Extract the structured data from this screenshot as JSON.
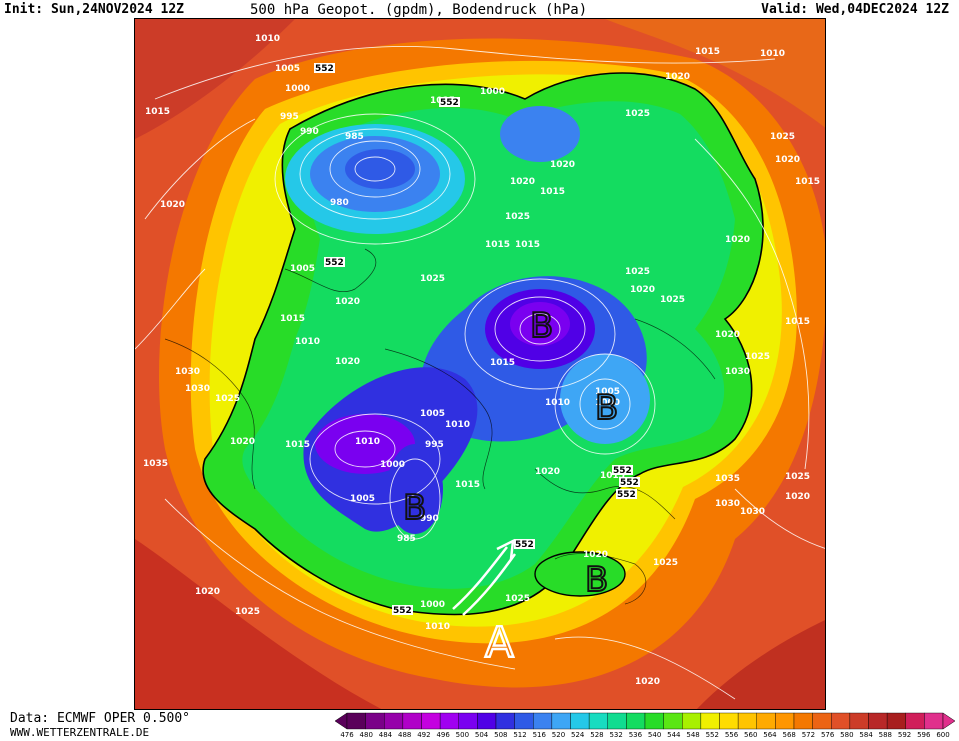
{
  "header": {
    "init": "Init: Sun,24NOV2024 12Z",
    "title": "500 hPa Geopot. (gpdm), Bodendruck (hPa)",
    "valid": "Valid: Wed,04DEC2024 12Z"
  },
  "footer": {
    "data_source": "Data: ECMWF OPER 0.500°",
    "url": "WWW.WETTERZENTRALE.DE"
  },
  "colorbar": {
    "ticks": [
      "476",
      "480",
      "484",
      "488",
      "492",
      "496",
      "500",
      "504",
      "508",
      "512",
      "516",
      "520",
      "524",
      "528",
      "532",
      "536",
      "540",
      "544",
      "548",
      "552",
      "556",
      "560",
      "564",
      "568",
      "572",
      "576",
      "580",
      "584",
      "588",
      "592",
      "596",
      "600"
    ],
    "colors": [
      "#5a005a",
      "#7a0088",
      "#9600aa",
      "#b000c8",
      "#c400e0",
      "#a000f0",
      "#7a00f0",
      "#5000e6",
      "#3030e0",
      "#2f5ae6",
      "#3b82f0",
      "#3ea6f5",
      "#25c8e8",
      "#18dcc0",
      "#10dc90",
      "#14dc60",
      "#28dc28",
      "#5ae614",
      "#a8f000",
      "#f0f000",
      "#ffdc00",
      "#ffc400",
      "#ffaa00",
      "#ff9600",
      "#f47800",
      "#ec6414",
      "#e05028",
      "#cc3c28",
      "#b82828",
      "#a81e1e",
      "#d01e5a",
      "#e0308c"
    ]
  },
  "annotations": {
    "low_symbol": "B",
    "high_symbol": "A",
    "gpdm_label": "552"
  },
  "isobar_labels": [
    {
      "text": "1010"
    },
    {
      "text": "1005"
    },
    {
      "text": "1000"
    },
    {
      "text": "995"
    },
    {
      "text": "990"
    },
    {
      "text": "985"
    },
    {
      "text": "980"
    },
    {
      "text": "1015"
    },
    {
      "text": "1020"
    },
    {
      "text": "1025"
    },
    {
      "text": "1030"
    },
    {
      "text": "1035"
    }
  ]
}
